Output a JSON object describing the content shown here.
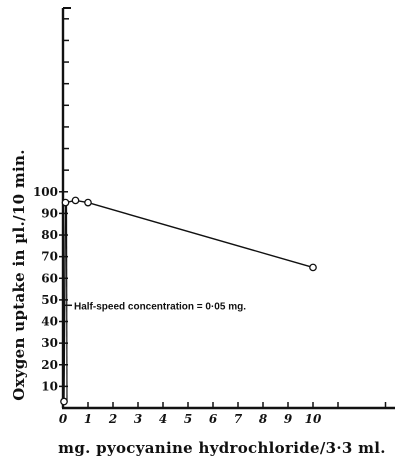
{
  "chart_data": {
    "type": "line",
    "title": "",
    "xlabel": "mg. pyocyanine hydrochloride/3·3 ml.",
    "ylabel": "Oxygen uptake in µl./10 min.",
    "xlim": [
      0,
      11.6
    ],
    "ylim": [
      0,
      185
    ],
    "x_ticks": [
      "0",
      "1",
      "2",
      "3",
      "4",
      "5",
      "6",
      "7",
      "8",
      "9",
      "10"
    ],
    "x_tick_values": [
      0,
      1,
      2,
      3,
      4,
      5,
      6,
      7,
      8,
      9,
      10
    ],
    "y_ticks": [
      "10",
      "20",
      "30",
      "40",
      "50",
      "60",
      "70",
      "80",
      "90",
      "100"
    ],
    "y_tick_values": [
      10,
      20,
      30,
      40,
      50,
      60,
      70,
      80,
      90,
      100
    ],
    "y_minor_ticks": [
      110,
      120,
      130,
      140,
      150,
      160,
      170,
      180
    ],
    "grid": false,
    "series": [
      {
        "x": [
          0,
          0.1,
          0.5,
          1,
          10
        ],
        "y": [
          3,
          95,
          96,
          95,
          65
        ]
      }
    ],
    "annotations": [
      {
        "text": "Half-speed concentration = 0·05 mg.",
        "y": 47.5
      }
    ]
  }
}
